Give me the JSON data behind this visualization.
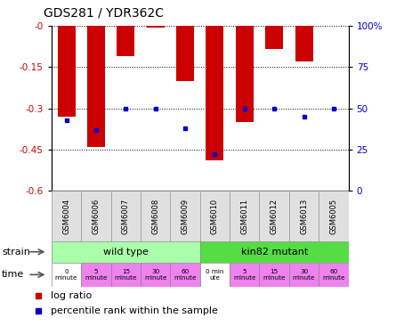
{
  "title": "GDS281 / YDR362C",
  "samples": [
    "GSM6004",
    "GSM6006",
    "GSM6007",
    "GSM6008",
    "GSM6009",
    "GSM6010",
    "GSM6011",
    "GSM6012",
    "GSM6013",
    "GSM6005"
  ],
  "log_ratios": [
    -0.33,
    -0.44,
    -0.11,
    -0.005,
    -0.2,
    -0.49,
    -0.35,
    -0.085,
    -0.13,
    0.0
  ],
  "percentile_ranks": [
    43,
    37,
    50,
    50,
    38,
    22,
    50,
    50,
    45,
    50
  ],
  "bar_color": "#CC0000",
  "dot_color": "#0000CC",
  "ylim_left": [
    -0.6,
    0.0
  ],
  "ylim_right": [
    0,
    100
  ],
  "yticks_left": [
    0.0,
    -0.15,
    -0.3,
    -0.45,
    -0.6
  ],
  "yticks_right": [
    0,
    25,
    50,
    75,
    100
  ],
  "ytick_labels_left": [
    "-0",
    "-0.15",
    "-0.3",
    "-0.45",
    "-0.6"
  ],
  "ytick_labels_right": [
    "0",
    "25",
    "50",
    "75",
    "100%"
  ],
  "strain_wild": {
    "label": "wild type",
    "color": "#AAFFAA",
    "cols": [
      0,
      1,
      2,
      3,
      4
    ]
  },
  "strain_kin82": {
    "label": "kin82 mutant",
    "color": "#55DD44",
    "cols": [
      5,
      6,
      7,
      8,
      9
    ]
  },
  "time_labels": [
    "0\nminute",
    "5\nminute",
    "15\nminute",
    "30\nminute",
    "60\nminute",
    "0 min\nute",
    "5\nminute",
    "15\nminute",
    "30\nminute",
    "60\nminute"
  ],
  "time_colors": [
    "#ffffff",
    "#EE82EE",
    "#EE82EE",
    "#EE82EE",
    "#EE82EE",
    "#ffffff",
    "#EE82EE",
    "#EE82EE",
    "#EE82EE",
    "#EE82EE"
  ],
  "legend_log_ratio": "log ratio",
  "legend_percentile": "percentile rank within the sample",
  "background_color": "#ffffff"
}
